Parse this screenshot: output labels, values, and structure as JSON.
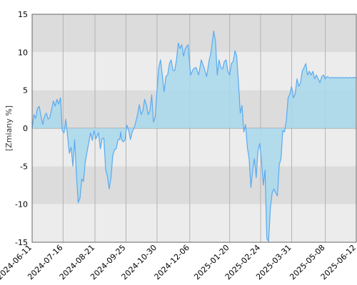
{
  "chart_data": {
    "type": "area",
    "title": "",
    "ylabel": "[Zmiany %]",
    "xlabel": "",
    "ylim": [
      -15,
      15
    ],
    "yticks": [
      15,
      10,
      5,
      0,
      -5,
      -10,
      -15
    ],
    "ytick_labels": [
      "15",
      "10",
      "5",
      "0",
      "-5",
      "-10",
      "-15"
    ],
    "xlim": [
      "2024-06-11",
      "2025-06-12"
    ],
    "xticks": [
      "2024-06-11",
      "2024-07-16",
      "2024-08-21",
      "2024-09-25",
      "2024-10-30",
      "2024-12-06",
      "2025-01-20",
      "2025-02-24",
      "2025-03-31",
      "2025-05-08",
      "2025-06-12"
    ],
    "grid": true,
    "legend": "none",
    "colors": {
      "band_dark": "#dcdcdc",
      "band_light": "#ececec",
      "area_fill": "#a8d8ec",
      "line": "#5aaaf0",
      "vgrid": "#b4b4b4",
      "zero_line": "#9a9a9a",
      "axis": "#666666"
    },
    "series": [
      {
        "values": [
          [
            "2024-06-11",
            0.0
          ],
          [
            "2024-06-13",
            1.8
          ],
          [
            "2024-06-15",
            1.3
          ],
          [
            "2024-06-17",
            2.6
          ],
          [
            "2024-06-19",
            2.9
          ],
          [
            "2024-06-21",
            1.6
          ],
          [
            "2024-06-23",
            0.5
          ],
          [
            "2024-06-25",
            1.6
          ],
          [
            "2024-06-27",
            2.0
          ],
          [
            "2024-06-29",
            1.2
          ],
          [
            "2024-07-01",
            1.4
          ],
          [
            "2024-07-03",
            2.5
          ],
          [
            "2024-07-05",
            3.6
          ],
          [
            "2024-07-07",
            2.9
          ],
          [
            "2024-07-09",
            3.8
          ],
          [
            "2024-07-11",
            3.2
          ],
          [
            "2024-07-13",
            4.0
          ],
          [
            "2024-07-15",
            -0.3
          ],
          [
            "2024-07-17",
            -0.6
          ],
          [
            "2024-07-19",
            1.2
          ],
          [
            "2024-07-21",
            -1.0
          ],
          [
            "2024-07-23",
            -3.3
          ],
          [
            "2024-07-25",
            -2.5
          ],
          [
            "2024-07-27",
            -5.0
          ],
          [
            "2024-07-29",
            -1.5
          ],
          [
            "2024-07-31",
            -6.0
          ],
          [
            "2024-08-02",
            -9.8
          ],
          [
            "2024-08-04",
            -9.2
          ],
          [
            "2024-08-06",
            -6.7
          ],
          [
            "2024-08-08",
            -7.0
          ],
          [
            "2024-08-10",
            -4.5
          ],
          [
            "2024-08-13",
            -2.5
          ],
          [
            "2024-08-16",
            -0.6
          ],
          [
            "2024-08-18",
            -1.6
          ],
          [
            "2024-08-20",
            -0.3
          ],
          [
            "2024-08-22",
            -1.4
          ],
          [
            "2024-08-25",
            -0.6
          ],
          [
            "2024-08-27",
            -2.7
          ],
          [
            "2024-08-29",
            -1.4
          ],
          [
            "2024-08-31",
            -1.3
          ],
          [
            "2024-09-02",
            -5.5
          ],
          [
            "2024-09-04",
            -6.3
          ],
          [
            "2024-09-06",
            -8.0
          ],
          [
            "2024-09-08",
            -6.5
          ],
          [
            "2024-09-10",
            -3.6
          ],
          [
            "2024-09-12",
            -2.8
          ],
          [
            "2024-09-14",
            -2.7
          ],
          [
            "2024-09-16",
            -1.5
          ],
          [
            "2024-09-18",
            -1.5
          ],
          [
            "2024-09-19",
            -0.5
          ],
          [
            "2024-09-20",
            -1.5
          ],
          [
            "2024-09-22",
            -1.8
          ],
          [
            "2024-09-24",
            -1.5
          ],
          [
            "2024-09-26",
            0.4
          ],
          [
            "2024-09-28",
            -0.2
          ],
          [
            "2024-09-30",
            -1.5
          ],
          [
            "2024-10-02",
            -0.5
          ],
          [
            "2024-10-04",
            0.0
          ],
          [
            "2024-10-06",
            0.8
          ],
          [
            "2024-10-08",
            1.8
          ],
          [
            "2024-10-10",
            3.1
          ],
          [
            "2024-10-12",
            1.8
          ],
          [
            "2024-10-14",
            2.3
          ],
          [
            "2024-10-16",
            3.8
          ],
          [
            "2024-10-18",
            3.1
          ],
          [
            "2024-10-20",
            1.8
          ],
          [
            "2024-10-22",
            2.3
          ],
          [
            "2024-10-24",
            4.4
          ],
          [
            "2024-10-26",
            0.8
          ],
          [
            "2024-10-28",
            1.5
          ],
          [
            "2024-10-30",
            5.0
          ],
          [
            "2024-11-01",
            8.0
          ],
          [
            "2024-11-03",
            9.0
          ],
          [
            "2024-11-05",
            7.0
          ],
          [
            "2024-11-07",
            4.8
          ],
          [
            "2024-11-09",
            6.8
          ],
          [
            "2024-11-11",
            7.0
          ],
          [
            "2024-11-13",
            8.5
          ],
          [
            "2024-11-15",
            9.0
          ],
          [
            "2024-11-17",
            7.6
          ],
          [
            "2024-11-19",
            7.6
          ],
          [
            "2024-11-21",
            9.0
          ],
          [
            "2024-11-23",
            11.2
          ],
          [
            "2024-11-25",
            10.5
          ],
          [
            "2024-11-27",
            11.0
          ],
          [
            "2024-11-29",
            9.5
          ],
          [
            "2024-12-01",
            10.5
          ],
          [
            "2024-12-04",
            11.0
          ],
          [
            "2024-12-07",
            7.0
          ],
          [
            "2024-12-10",
            7.8
          ],
          [
            "2024-12-13",
            8.0
          ],
          [
            "2024-12-16",
            7.0
          ],
          [
            "2024-12-19",
            9.0
          ],
          [
            "2024-12-22",
            8.0
          ],
          [
            "2024-12-25",
            6.8
          ],
          [
            "2024-12-28",
            9.0
          ],
          [
            "2024-12-30",
            10.0
          ],
          [
            "2025-01-02",
            12.8
          ],
          [
            "2025-01-04",
            11.5
          ],
          [
            "2025-01-06",
            7.0
          ],
          [
            "2025-01-08",
            9.0
          ],
          [
            "2025-01-10",
            8.0
          ],
          [
            "2025-01-12",
            7.8
          ],
          [
            "2025-01-14",
            8.8
          ],
          [
            "2025-01-16",
            9.0
          ],
          [
            "2025-01-18",
            7.5
          ],
          [
            "2025-01-20",
            7.0
          ],
          [
            "2025-01-22",
            8.5
          ],
          [
            "2025-01-24",
            8.8
          ],
          [
            "2025-01-26",
            10.2
          ],
          [
            "2025-01-28",
            9.5
          ],
          [
            "2025-01-30",
            6.0
          ],
          [
            "2025-02-01",
            2.0
          ],
          [
            "2025-02-03",
            3.0
          ],
          [
            "2025-02-05",
            -0.5
          ],
          [
            "2025-02-07",
            0.5
          ],
          [
            "2025-02-09",
            -2.5
          ],
          [
            "2025-02-11",
            -4.0
          ],
          [
            "2025-02-13",
            -7.8
          ],
          [
            "2025-02-15",
            -5.5
          ],
          [
            "2025-02-17",
            -4.0
          ],
          [
            "2025-02-19",
            -6.5
          ],
          [
            "2025-02-21",
            -3.0
          ],
          [
            "2025-02-23",
            -2.0
          ],
          [
            "2025-02-25",
            -4.5
          ],
          [
            "2025-02-27",
            -7.5
          ],
          [
            "2025-03-01",
            -5.5
          ],
          [
            "2025-03-03",
            -14.5
          ],
          [
            "2025-03-05",
            -14.9
          ],
          [
            "2025-03-07",
            -10.5
          ],
          [
            "2025-03-09",
            -8.5
          ],
          [
            "2025-03-11",
            -8.0
          ],
          [
            "2025-03-13",
            -8.5
          ],
          [
            "2025-03-15",
            -8.9
          ],
          [
            "2025-03-17",
            -4.8
          ],
          [
            "2025-03-19",
            -4.0
          ],
          [
            "2025-03-21",
            -0.3
          ],
          [
            "2025-03-23",
            -0.5
          ],
          [
            "2025-03-25",
            1.0
          ],
          [
            "2025-03-27",
            4.0
          ],
          [
            "2025-03-29",
            4.5
          ],
          [
            "2025-03-31",
            5.5
          ],
          [
            "2025-04-02",
            4.0
          ],
          [
            "2025-04-04",
            4.5
          ],
          [
            "2025-04-06",
            6.5
          ],
          [
            "2025-04-08",
            5.5
          ],
          [
            "2025-04-10",
            6.0
          ],
          [
            "2025-04-12",
            7.5
          ],
          [
            "2025-04-14",
            8.0
          ],
          [
            "2025-04-16",
            8.5
          ],
          [
            "2025-04-18",
            7.0
          ],
          [
            "2025-04-20",
            7.5
          ],
          [
            "2025-04-22",
            7.0
          ],
          [
            "2025-04-24",
            7.5
          ],
          [
            "2025-04-26",
            6.5
          ],
          [
            "2025-04-28",
            7.0
          ],
          [
            "2025-04-30",
            6.5
          ],
          [
            "2025-05-02",
            6.0
          ],
          [
            "2025-05-04",
            6.8
          ],
          [
            "2025-05-06",
            7.0
          ],
          [
            "2025-05-08",
            6.5
          ],
          [
            "2025-05-10",
            6.8
          ],
          [
            "2025-05-12",
            6.7
          ],
          [
            "2025-05-14",
            6.6
          ],
          [
            "2025-05-16",
            6.7
          ],
          [
            "2025-05-18",
            6.6
          ],
          [
            "2025-05-20",
            6.7
          ],
          [
            "2025-05-22",
            6.6
          ],
          [
            "2025-05-24",
            6.7
          ],
          [
            "2025-05-26",
            6.6
          ],
          [
            "2025-05-28",
            6.7
          ],
          [
            "2025-05-30",
            6.6
          ],
          [
            "2025-06-01",
            6.7
          ],
          [
            "2025-06-03",
            6.6
          ],
          [
            "2025-06-05",
            6.7
          ],
          [
            "2025-06-07",
            6.6
          ],
          [
            "2025-06-09",
            6.7
          ],
          [
            "2025-06-12",
            6.6
          ]
        ]
      }
    ]
  }
}
